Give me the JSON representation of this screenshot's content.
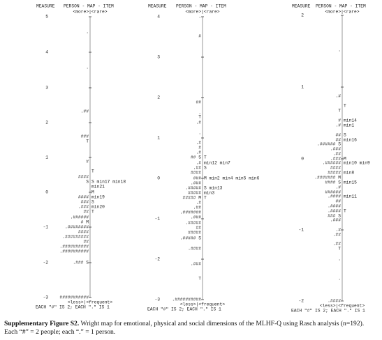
{
  "figure": {
    "panels": [
      {
        "header": {
          "measure": "MEASURE",
          "map": "PERSON - MAP - ITEM",
          "top": "<more>|<rare>"
        },
        "scale": [
          "5",
          "4",
          "3",
          "2",
          "1",
          "0",
          "-1",
          "-2",
          "-3"
        ],
        "rows": [
          {
            "person": "."
          },
          {
            "person": "."
          },
          {
            "person": ".##"
          },
          {
            "person": "###"
          },
          {
            "person": "T"
          },
          {
            "person": "#"
          },
          {
            "item": "T"
          },
          {
            "person": "####"
          },
          {
            "person": "S",
            "item": "S min17  min18"
          },
          {
            "item": "min21"
          },
          {
            "item": "M"
          },
          {
            "person": "####",
            "item": "min19"
          },
          {
            "person": "###",
            "item": "S"
          },
          {
            "person": ".###",
            "item": "min20"
          },
          {
            "person": "##",
            "item": "T"
          },
          {
            "person": ".######"
          },
          {
            "person": "# M"
          },
          {
            "person": ".########"
          },
          {
            "person": "####"
          },
          {
            "person": ".#########"
          },
          {
            "person": "##"
          },
          {
            "person": ".##########"
          },
          {
            "person": ".##########"
          },
          {
            "person": ".### S"
          },
          {
            "person": "###########"
          }
        ],
        "footer": {
          "bottom": "<less>|<frequent>",
          "note": "EACH \"#\" IS 2; EACH \".\" IS 1"
        }
      },
      {
        "header": {
          "measure": "MEASURE",
          "map": "PERSON - MAP - ITEM",
          "top": "<more>|<rare>"
        },
        "scale": [
          "4",
          "3",
          "2",
          "1",
          "0",
          "-1",
          "-2",
          "-3"
        ],
        "rows": [
          {
            "person": "."
          },
          {
            "person": "#"
          },
          {
            "person": "##"
          },
          {
            "person": "."
          },
          {
            "person": "T"
          },
          {
            "person": ".#"
          },
          {
            "person": "."
          },
          {
            "person": ".#"
          },
          {
            "person": "#"
          },
          {
            "person": ".#"
          },
          {
            "person": "## S",
            "item": "T"
          },
          {
            "person": ".#",
            "item": "min12  min7"
          },
          {
            "person": ".##",
            "item": "S"
          },
          {
            "person": "####"
          },
          {
            "person": "###",
            "item": "M min2   min4   min5   min6"
          },
          {
            "person": ".###"
          },
          {
            "person": ".#####",
            "item": "S min13"
          },
          {
            "person": "#####",
            "item": "min3"
          },
          {
            "person": "##### M",
            "item": "T"
          },
          {
            "person": ".#"
          },
          {
            "person": ".##"
          },
          {
            "person": ".#######"
          },
          {
            "person": ".###"
          },
          {
            "person": ".#####"
          },
          {
            "person": "##"
          },
          {
            "person": "#####"
          },
          {
            "person": ".##### S"
          },
          {
            "person": ".####"
          },
          {
            "person": ".###"
          },
          {
            "person": "T"
          },
          {
            "person": ".##########"
          }
        ],
        "footer": {
          "bottom": "<less>|<frequent>",
          "note": "EACH \"#\" IS 2; EACH \".\" IS 1"
        }
      },
      {
        "header": {
          "measure": "MEASURE",
          "map": "PERSON - MAP - ITEM",
          "top": "<more>|<rare>"
        },
        "scale": [
          "2",
          "1",
          "0",
          "-1",
          "-2"
        ],
        "rows": [
          {
            "person": "."
          },
          {
            "person": ".#"
          },
          {
            "item": "T"
          },
          {
            "person": "T"
          },
          {
            "person": "#",
            "item": "min14"
          },
          {
            "person": ".#",
            "item": "min1"
          },
          {
            "person": "##",
            "item": "S"
          },
          {
            "person": "##",
            "item": "min16"
          },
          {
            "person": ".###### S"
          },
          {
            "person": ".###"
          },
          {
            "person": ".##"
          },
          {
            "person": ".###",
            "item": "M"
          },
          {
            "person": ".######",
            "item": "min10  min9"
          },
          {
            "person": "####"
          },
          {
            "person": "#####",
            "item": "min8"
          },
          {
            "person": ".####### M"
          },
          {
            "person": "####  S",
            "item": "min15"
          },
          {
            "person": ".#"
          },
          {
            "person": "######"
          },
          {
            "person": ".####",
            "item": "min11"
          },
          {
            "person": "##"
          },
          {
            "person": ".####"
          },
          {
            "person": ".####",
            "item": "T"
          },
          {
            "person": "### S"
          },
          {
            "person": ".###"
          },
          {
            "person": ".#"
          },
          {
            "person": ".##"
          },
          {
            "person": ".##"
          },
          {
            "person": "T"
          },
          {
            "person": "."
          },
          {
            "person": "."
          },
          {
            "person": ".####"
          }
        ],
        "footer": {
          "bottom": "<less>|<frequent>",
          "note": "EACH \"#\" IS 2; EACH \".\" IS 1"
        }
      }
    ]
  },
  "caption": {
    "label": "Supplementary Figure S2.",
    "text": " Wright map for emotional, physical and social dimensions of the MLHF-Q using Rasch analysis (n=192). Each “#” = 2 people; each “.” = 1 person."
  }
}
